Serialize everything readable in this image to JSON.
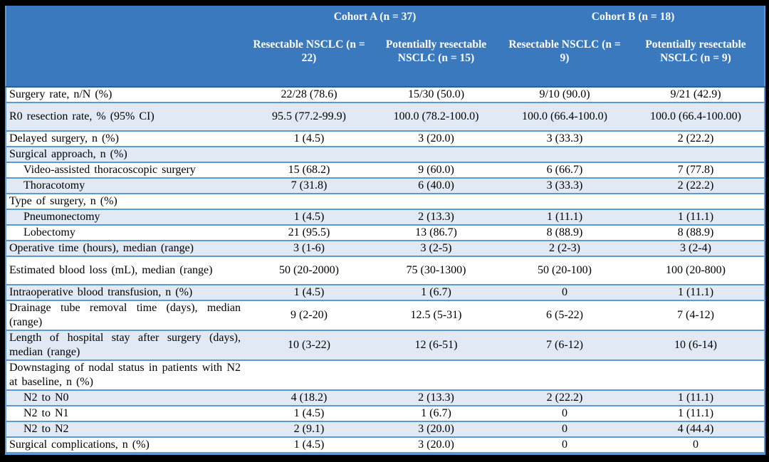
{
  "colors": {
    "header_bg": "#3a79bd",
    "header_text": "#ffffff",
    "band_bg": "#e1e9f4",
    "row_bg": "#ffffff",
    "grid": "#5b9bd5",
    "header_rule": "#2b5f94",
    "frame": "#000000",
    "body_text": "#000000"
  },
  "table": {
    "header": {
      "groups": [
        {
          "label": "Cohort A (n = 37)"
        },
        {
          "label": "Cohort B (n = 18)"
        }
      ],
      "subheaders": [
        "Resectable NSCLC (n = 22)",
        "Potentially resectable NSCLC (n = 15)",
        "Resectable NSCLC (n = 9)",
        "Potentially resectable NSCLC (n = 9)"
      ]
    },
    "rows": [
      {
        "label": "Surgery rate, n/N (%)",
        "indent": false,
        "values": [
          "22/28 (78.6)",
          "15/30 (50.0)",
          "9/10 (90.0)",
          "9/21 (42.9)"
        ]
      },
      {
        "label": "R0 resection rate, % (95% CI)",
        "indent": false,
        "values": [
          "95.5 (77.2-99.9)",
          "100.0 (78.2-100.0)",
          "100.0 (66.4-100.0)",
          "100.0 (66.4-100.00)"
        ]
      },
      {
        "label": "Delayed surgery, n (%)",
        "indent": false,
        "values": [
          "1 (4.5)",
          "3 (20.0)",
          "3 (33.3)",
          "2 (22.2)"
        ]
      },
      {
        "label": "Surgical approach, n (%)",
        "indent": false,
        "values": [
          "",
          "",
          "",
          ""
        ]
      },
      {
        "label": "Video-assisted thoracoscopic surgery",
        "indent": true,
        "values": [
          "15 (68.2)",
          "9 (60.0)",
          "6 (66.7)",
          "7 (77.8)"
        ]
      },
      {
        "label": "Thoracotomy",
        "indent": true,
        "values": [
          "7 (31.8)",
          "6 (40.0)",
          "3 (33.3)",
          "2 (22.2)"
        ]
      },
      {
        "label": "Type of surgery, n (%)",
        "indent": false,
        "values": [
          "",
          "",
          "",
          ""
        ]
      },
      {
        "label": "Pneumonectomy",
        "indent": true,
        "values": [
          "1 (4.5)",
          "2 (13.3)",
          "1 (11.1)",
          "1 (11.1)"
        ]
      },
      {
        "label": "Lobectomy",
        "indent": true,
        "values": [
          "21 (95.5)",
          "13 (86.7)",
          "8 (88.9)",
          "8 (88.9)"
        ]
      },
      {
        "label": "Operative time (hours), median (range)",
        "indent": false,
        "values": [
          "3 (1-6)",
          "3 (2-5)",
          "2 (2-3)",
          "3 (2-4)"
        ]
      },
      {
        "label": "Estimated blood loss (mL), median (range)",
        "indent": false,
        "values": [
          "50 (20-2000)",
          "75 (30-1300)",
          "50 (20-100)",
          "100 (20-800)"
        ]
      },
      {
        "label": "Intraoperative blood transfusion, n (%)",
        "indent": false,
        "values": [
          "1 (4.5)",
          "1 (6.7)",
          "0",
          "1 (11.1)"
        ]
      },
      {
        "label": "Drainage tube removal time (days), median (range)",
        "indent": false,
        "values": [
          "9 (2-20)",
          "12.5 (5-31)",
          "6 (5-22)",
          "7 (4-12)"
        ]
      },
      {
        "label": "Length of hospital stay after surgery (days), median (range)",
        "indent": false,
        "values": [
          "10 (3-22)",
          "12 (6-51)",
          "7 (6-12)",
          "10 (6-14)"
        ]
      },
      {
        "label": "Downstaging of nodal status in patients with N2 at baseline, n (%)",
        "indent": false,
        "values": [
          "",
          "",
          "",
          ""
        ]
      },
      {
        "label": "N2 to N0",
        "indent": true,
        "values": [
          "4 (18.2)",
          "2 (13.3)",
          "2 (22.2)",
          "1 (11.1)"
        ]
      },
      {
        "label": "N2 to N1",
        "indent": true,
        "values": [
          "1 (4.5)",
          "1 (6.7)",
          "0",
          "1 (11.1)"
        ]
      },
      {
        "label": "N2 to N2",
        "indent": true,
        "values": [
          "2 (9.1)",
          "3 (20.0)",
          "0",
          "4 (44.4)"
        ]
      },
      {
        "label": "Surgical complications, n (%)",
        "indent": false,
        "values": [
          "1 (4.5)",
          "3 (20.0)",
          "0",
          "0"
        ]
      }
    ]
  }
}
